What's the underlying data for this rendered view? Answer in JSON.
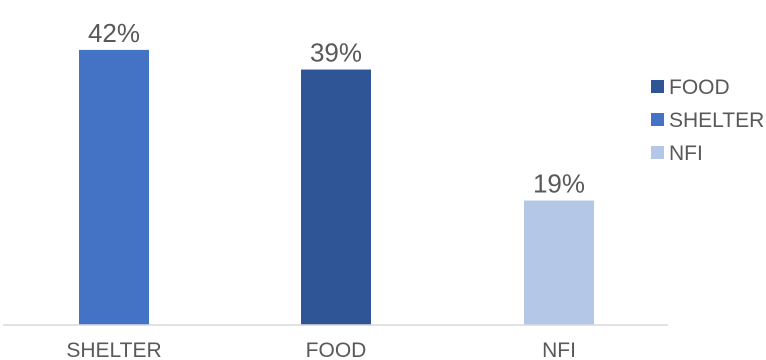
{
  "chart_data": {
    "type": "bar",
    "categories": [
      "SHELTER",
      "FOOD",
      "NFI"
    ],
    "values": [
      42,
      39,
      19
    ],
    "value_labels": [
      "42%",
      "39%",
      "19%"
    ],
    "unit": "%",
    "ylim": [
      0,
      45
    ],
    "grid": false,
    "legend_position": "right",
    "bar_colors": [
      "#4472c4",
      "#2f5597",
      "#b4c7e7"
    ],
    "legend": [
      {
        "name": "FOOD",
        "color": "#2f5597"
      },
      {
        "name": "SHELTER",
        "color": "#4472c4"
      },
      {
        "name": "NFI",
        "color": "#b4c7e7"
      }
    ],
    "axis_color": "#d9d9d9",
    "text_color": "#595959"
  }
}
